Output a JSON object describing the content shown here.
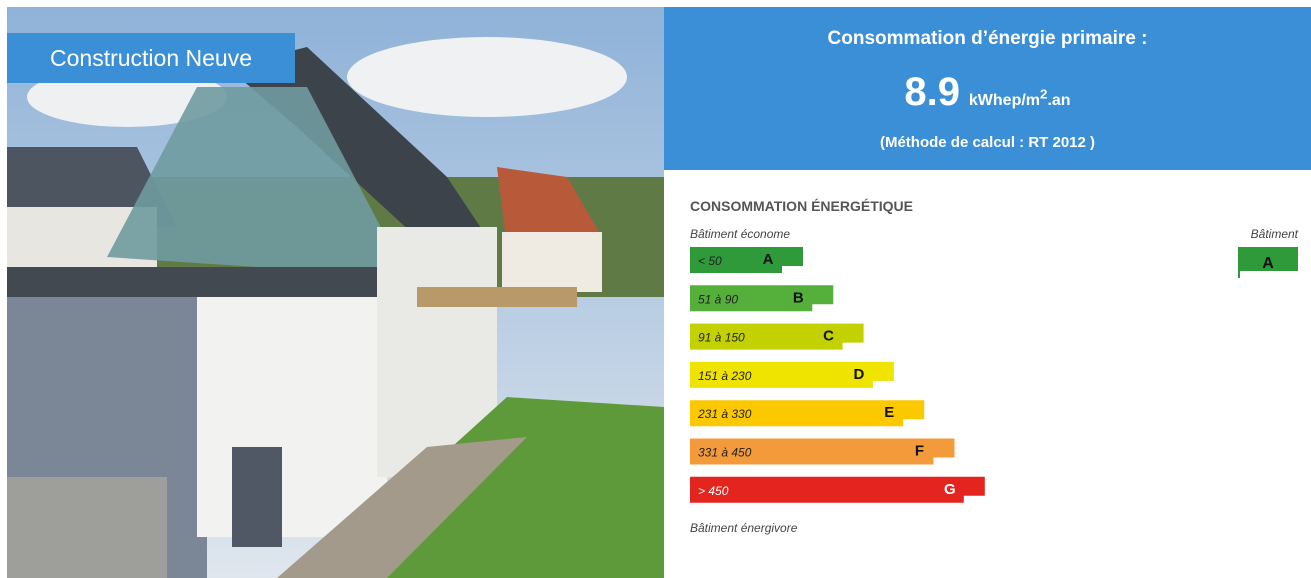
{
  "badge": "Construction Neuve",
  "header": {
    "title": "Consommation d’énergie primaire :",
    "value": "8.9",
    "unit_main": "kWhep/m",
    "unit_sup": "2",
    "unit_end": ".an",
    "method": "(Méthode de calcul : RT 2012 )"
  },
  "label": {
    "title": "CONSOMMATION ÉNERGÉTIQUE",
    "top_note": "Bâtiment économe",
    "bottom_note": "Bâtiment énergivore",
    "building_heading": "Bâtiment",
    "building_class": "A",
    "building_color": "#2e9a3a",
    "classes": [
      {
        "range": "< 50",
        "letter": "A",
        "color": "#2e9a3a"
      },
      {
        "range": "51 à 90",
        "letter": "B",
        "color": "#55b03b"
      },
      {
        "range": "91 à 150",
        "letter": "C",
        "color": "#c3d100"
      },
      {
        "range": "151 à 230",
        "letter": "D",
        "color": "#efe400"
      },
      {
        "range": "231 à 330",
        "letter": "E",
        "color": "#fcc800"
      },
      {
        "range": "331 à 450",
        "letter": "F",
        "color": "#f39a3b"
      },
      {
        "range": "> 450",
        "letter": "G",
        "color": "#e3241f"
      }
    ]
  }
}
